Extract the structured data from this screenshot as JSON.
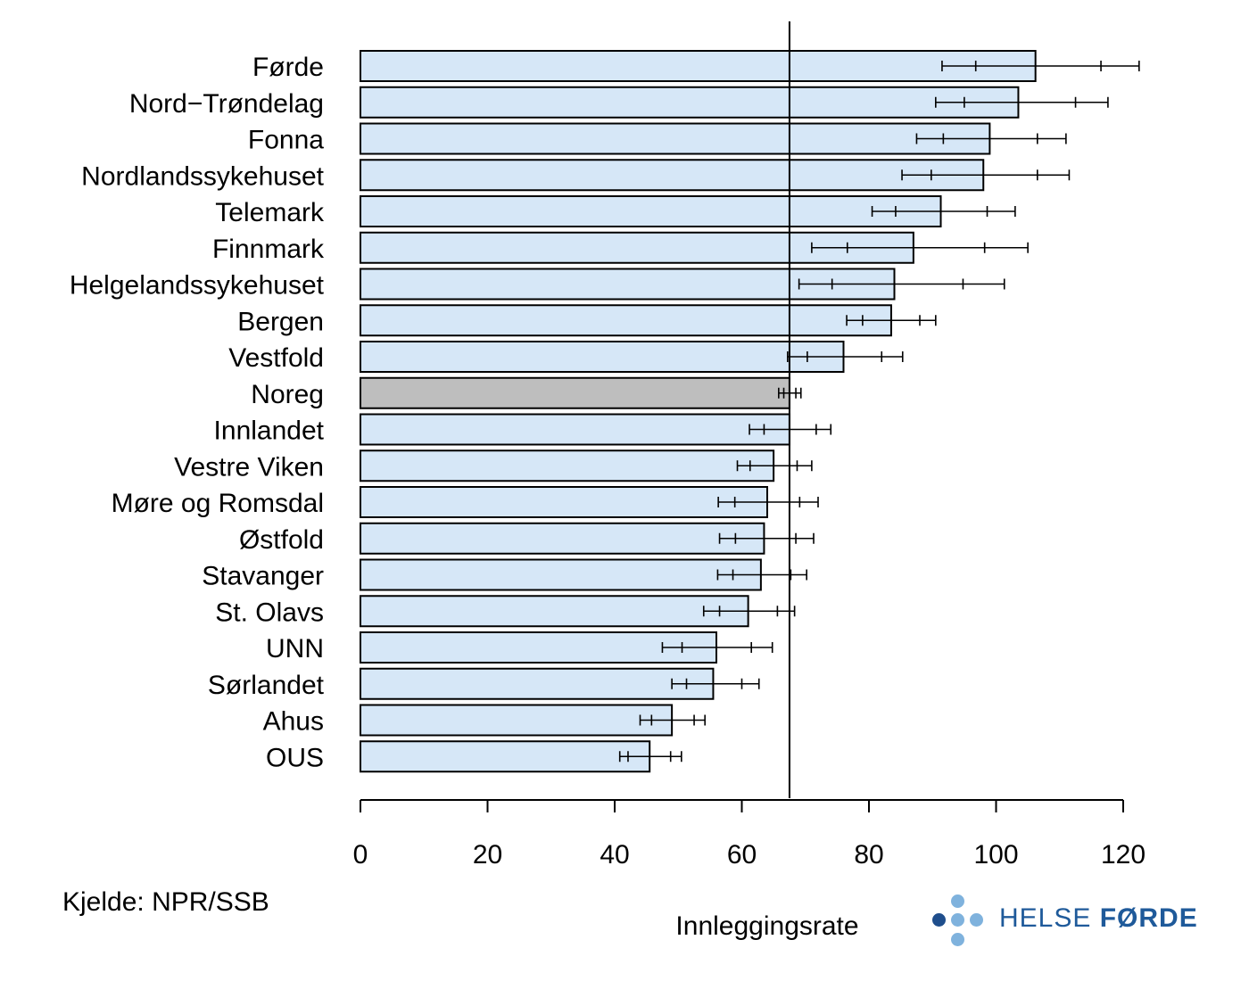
{
  "chart_data": {
    "type": "bar",
    "orientation": "horizontal",
    "xlabel": "Innleggingsrate",
    "xlim": [
      0,
      120
    ],
    "xticks": [
      0,
      20,
      40,
      60,
      80,
      100,
      120
    ],
    "reference_line": 67.5,
    "categories": [
      "Førde",
      "Nord−Trøndelag",
      "Fonna",
      "Nordlandssykehuset",
      "Telemark",
      "Finnmark",
      "Helgelandssykehuset",
      "Bergen",
      "Vestfold",
      "Noreg",
      "Innlandet",
      "Vestre Viken",
      "Møre og Romsdal",
      "Østfold",
      "Stavanger",
      "St. Olavs",
      "UNN",
      "Sørlandet",
      "Ahus",
      "OUS"
    ],
    "values": [
      106.2,
      103.5,
      99.0,
      98.0,
      91.3,
      87.0,
      84.0,
      83.5,
      76.0,
      67.5,
      67.5,
      65.0,
      64.0,
      63.5,
      63.0,
      61.0,
      56.0,
      55.5,
      49.0,
      45.5
    ],
    "error_outer_low": [
      91.5,
      90.5,
      87.5,
      85.2,
      80.5,
      71.0,
      69.0,
      76.5,
      67.2,
      65.8,
      61.2,
      59.3,
      56.3,
      56.5,
      56.2,
      54.0,
      47.5,
      49.0,
      44.0,
      40.8
    ],
    "error_inner_low": [
      96.8,
      95.0,
      91.7,
      89.8,
      84.2,
      76.6,
      74.2,
      79.0,
      70.3,
      66.6,
      63.5,
      61.3,
      58.9,
      59.0,
      58.6,
      56.5,
      50.6,
      51.3,
      45.8,
      42.1
    ],
    "error_inner_high": [
      116.5,
      112.5,
      106.5,
      106.5,
      98.6,
      98.2,
      94.8,
      88.0,
      82.0,
      68.5,
      71.7,
      68.7,
      69.1,
      68.5,
      67.7,
      65.6,
      61.5,
      60.0,
      52.5,
      48.8
    ],
    "error_outer_high": [
      122.5,
      117.6,
      111.0,
      111.5,
      103.0,
      105.0,
      101.3,
      90.5,
      85.3,
      69.3,
      74.0,
      71.0,
      72.0,
      71.3,
      70.2,
      68.3,
      64.8,
      62.7,
      54.2,
      50.5
    ],
    "highlight_category": "Noreg",
    "bar_color": "#d6e7f7",
    "highlight_color": "#bebebe"
  },
  "footer": {
    "source": "Kjelde: NPR/SSB"
  },
  "logo": {
    "text_light": "HELSE ",
    "text_bold": "FØRDE",
    "color": "#1f5a9a"
  }
}
